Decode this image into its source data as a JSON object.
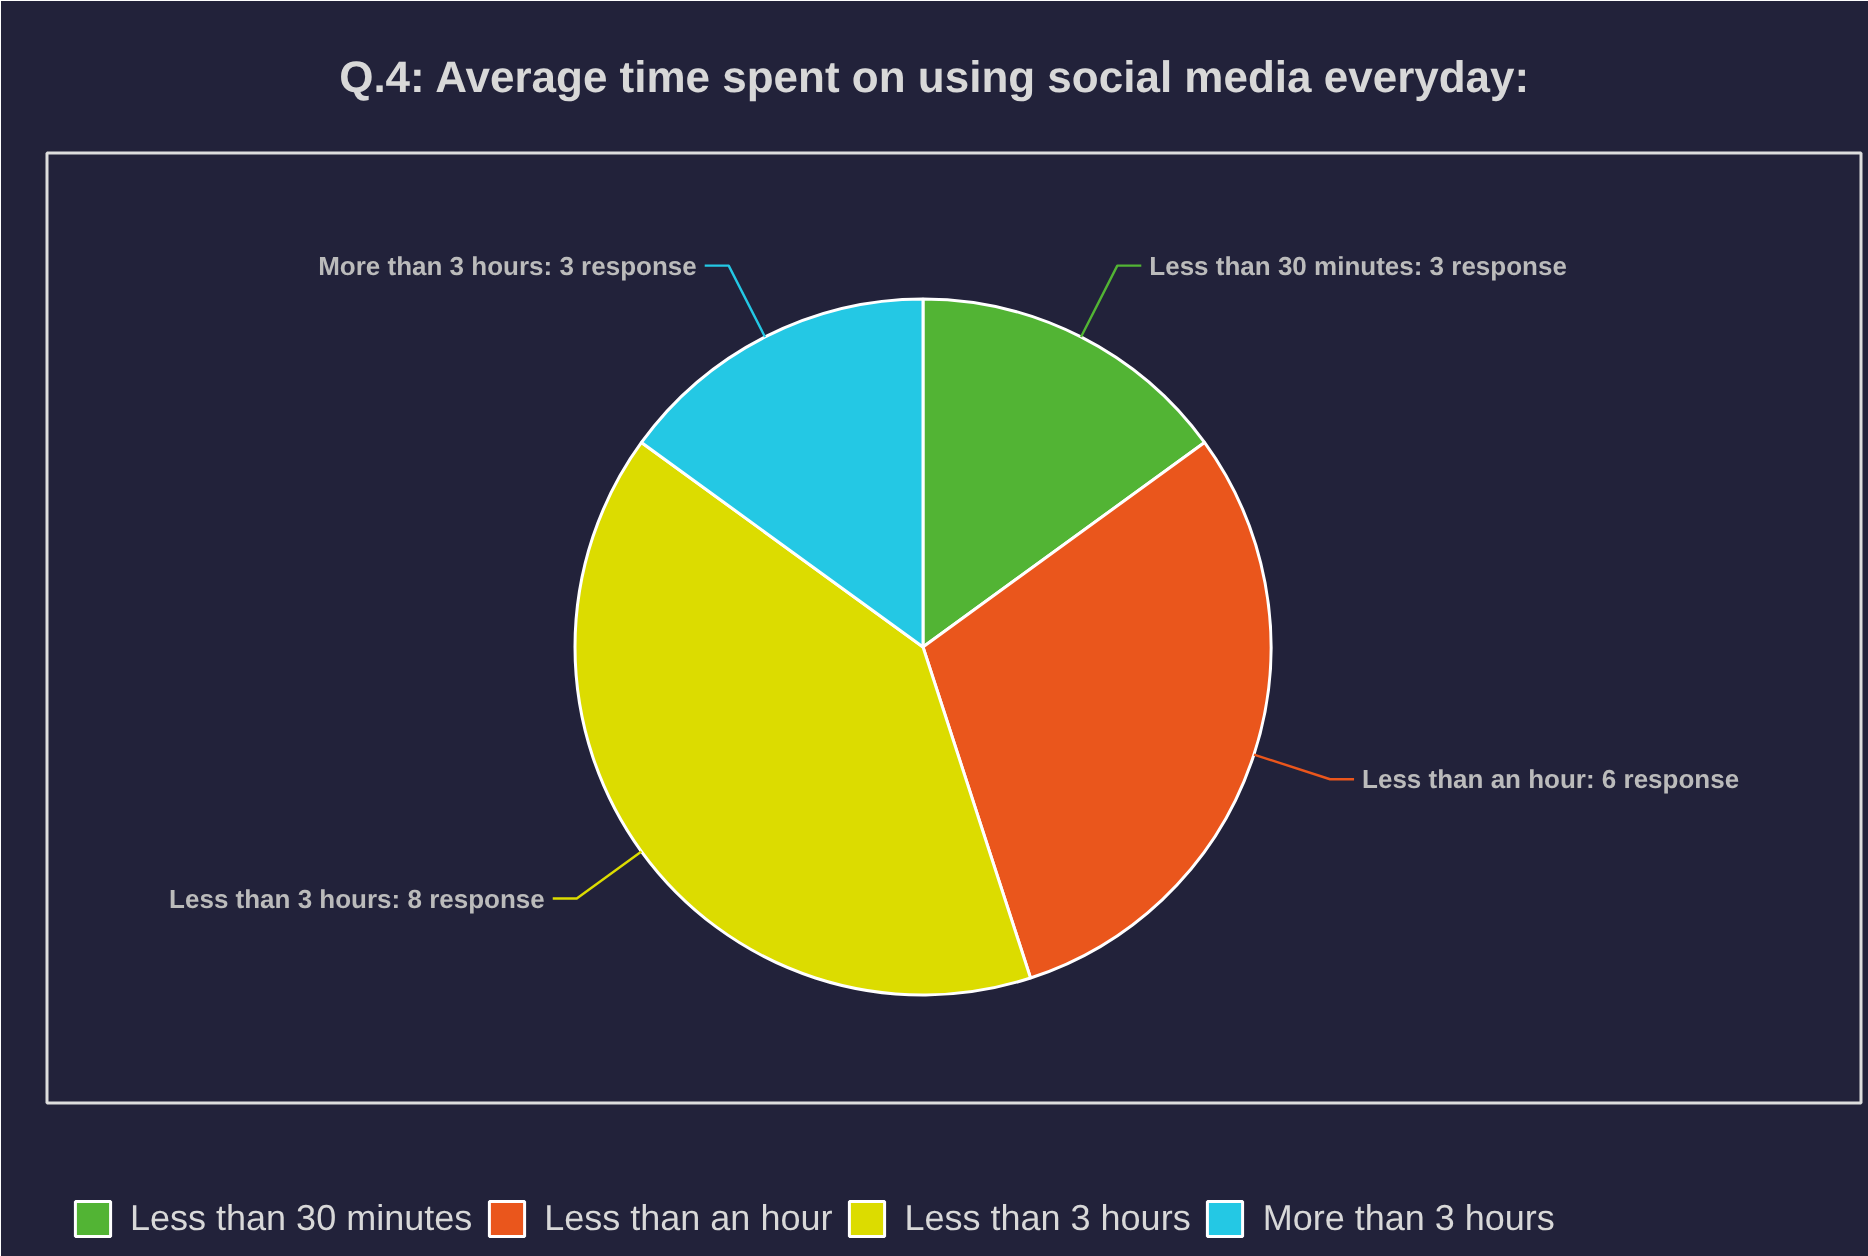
{
  "chart_data": {
    "type": "pie",
    "title": "Q.4: Average time spent on using social media everyday:",
    "categories": [
      "Less than 30 minutes",
      "Less than an hour",
      "Less than 3 hours",
      "More than 3 hours"
    ],
    "values": [
      3,
      6,
      8,
      3
    ],
    "colors": [
      "#52b434",
      "#ea561c",
      "#dcdc00",
      "#24c8e4"
    ],
    "value_labels": [
      "Less than 30 minutes: 3 response",
      "Less than an hour: 6 response",
      "Less than 3 hours: 8 response",
      "More than 3 hours: 3 response"
    ],
    "legend": "bottom"
  }
}
